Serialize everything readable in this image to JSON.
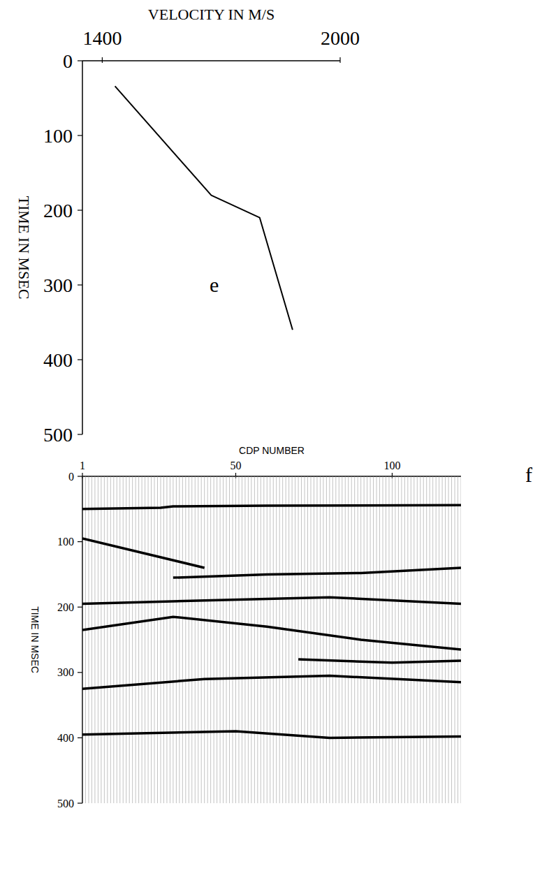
{
  "chart_data": [
    {
      "type": "line",
      "panel_label": "e",
      "x_label": "VELOCITY IN M/S",
      "y_label": "TIME IN MSEC",
      "xlim": [
        1350,
        2000
      ],
      "xticks": [
        1400,
        2000
      ],
      "ylim": [
        0,
        500
      ],
      "yticks": [
        0,
        100,
        200,
        300,
        400,
        500
      ],
      "series": [
        {
          "color": "#000000",
          "x": [
            1432,
            1675,
            1797,
            1880
          ],
          "values": [
            34,
            180,
            210,
            360
          ]
        }
      ]
    },
    {
      "type": "line",
      "panel_label": "f",
      "x_label": "CDP NUMBER",
      "y_label": "TIME IN MSEC",
      "xlim": [
        1,
        122
      ],
      "xticks": [
        1,
        50,
        100
      ],
      "ylim": [
        0,
        500
      ],
      "yticks": [
        0,
        100,
        200,
        300,
        400,
        500
      ],
      "series": [
        {
          "color": "#000000",
          "x": [
            1,
            26,
            30,
            60,
            122
          ],
          "values": [
            50,
            48,
            46,
            45,
            44
          ]
        },
        {
          "color": "#000000",
          "x": [
            1,
            40
          ],
          "values": [
            95,
            140
          ]
        },
        {
          "color": "#000000",
          "x": [
            30,
            60,
            90,
            122
          ],
          "values": [
            155,
            150,
            148,
            140
          ]
        },
        {
          "color": "#000000",
          "x": [
            1,
            40,
            80,
            122
          ],
          "values": [
            195,
            190,
            185,
            195
          ]
        },
        {
          "color": "#000000",
          "x": [
            1,
            30,
            60,
            90,
            122
          ],
          "values": [
            235,
            215,
            230,
            250,
            265
          ]
        },
        {
          "color": "#000000",
          "x": [
            70,
            100,
            122
          ],
          "values": [
            280,
            285,
            282
          ]
        },
        {
          "color": "#000000",
          "x": [
            1,
            40,
            80,
            122
          ],
          "values": [
            325,
            310,
            305,
            315
          ]
        },
        {
          "color": "#000000",
          "x": [
            1,
            50,
            80,
            122
          ],
          "values": [
            395,
            390,
            400,
            398
          ]
        }
      ]
    }
  ]
}
